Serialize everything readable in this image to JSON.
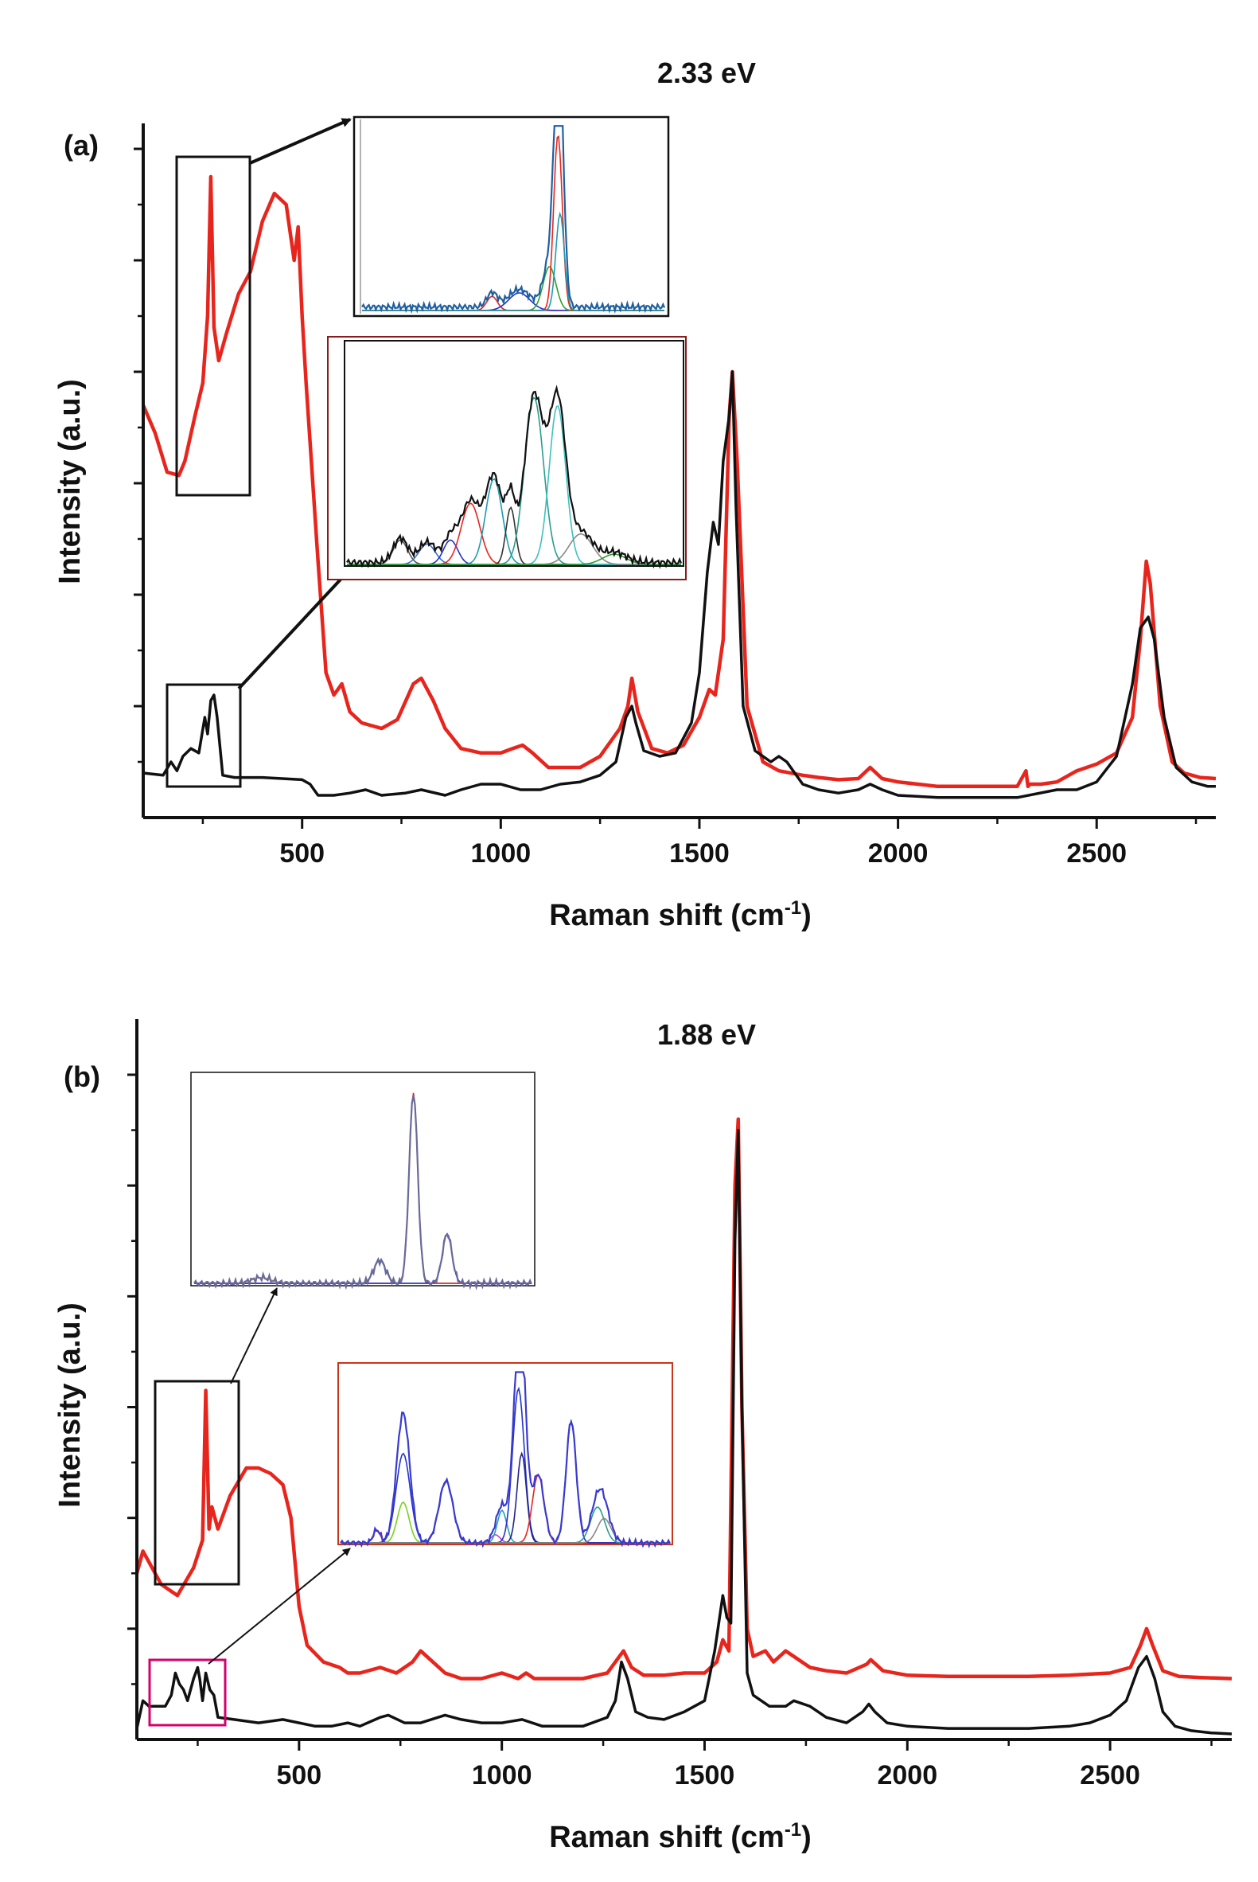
{
  "chart_data": [
    {
      "panel": "(a)",
      "type": "line",
      "title": "2.33 eV",
      "xlabel": "Raman shift (cm",
      "xlabel_sup": "-1",
      "xlabel_end": ")",
      "ylabel": "Intensity (a.u.)",
      "xlim": [
        100,
        2800
      ],
      "ylim": [
        0,
        6
      ],
      "xticks": [
        500,
        1000,
        1500,
        2000,
        2500
      ],
      "yticks": [
        1,
        2,
        3,
        4,
        5,
        6
      ],
      "grid": false,
      "colors": {
        "red": "#e8251d",
        "black": "#111111"
      },
      "series": [
        {
          "color": "#e8251d",
          "x": [
            100,
            130,
            160,
            190,
            205,
            230,
            250,
            262,
            270,
            278,
            290,
            310,
            340,
            370,
            400,
            430,
            460,
            480,
            490,
            500,
            510,
            540,
            560,
            580,
            600,
            620,
            650,
            700,
            740,
            780,
            800,
            830,
            860,
            900,
            950,
            1000,
            1030,
            1055,
            1080,
            1120,
            1200,
            1250,
            1300,
            1320,
            1330,
            1345,
            1380,
            1420,
            1460,
            1500,
            1525,
            1540,
            1560,
            1575,
            1583,
            1595,
            1620,
            1660,
            1700,
            1760,
            1800,
            1850,
            1900,
            1930,
            1960,
            2000,
            2050,
            2100,
            2200,
            2300,
            2322,
            2327,
            2332,
            2360,
            2400,
            2450,
            2500,
            2550,
            2590,
            2610,
            2625,
            2635,
            2660,
            2690,
            2720,
            2760,
            2800
          ],
          "y": [
            3.7,
            3.45,
            3.1,
            3.07,
            3.2,
            3.6,
            3.9,
            4.5,
            5.75,
            4.4,
            4.1,
            4.35,
            4.7,
            4.9,
            5.35,
            5.6,
            5.5,
            5.0,
            5.3,
            4.5,
            3.9,
            2.3,
            1.3,
            1.1,
            1.2,
            0.95,
            0.85,
            0.8,
            0.88,
            1.2,
            1.25,
            1.05,
            0.8,
            0.62,
            0.58,
            0.58,
            0.62,
            0.65,
            0.58,
            0.45,
            0.45,
            0.55,
            0.8,
            1.0,
            1.25,
            0.95,
            0.62,
            0.58,
            0.65,
            0.9,
            1.15,
            1.1,
            1.6,
            3.6,
            4.0,
            3.2,
            1.0,
            0.5,
            0.42,
            0.38,
            0.36,
            0.34,
            0.35,
            0.45,
            0.35,
            0.32,
            0.3,
            0.28,
            0.28,
            0.28,
            0.42,
            0.28,
            0.3,
            0.3,
            0.32,
            0.42,
            0.48,
            0.58,
            0.9,
            1.6,
            2.3,
            2.1,
            1.0,
            0.5,
            0.4,
            0.36,
            0.35
          ]
        },
        {
          "color": "#111111",
          "x": [
            100,
            150,
            170,
            185,
            200,
            220,
            240,
            255,
            262,
            270,
            278,
            286,
            300,
            330,
            400,
            450,
            500,
            520,
            540,
            580,
            620,
            660,
            700,
            760,
            800,
            860,
            900,
            950,
            1000,
            1050,
            1100,
            1150,
            1200,
            1250,
            1290,
            1315,
            1330,
            1340,
            1360,
            1400,
            1440,
            1480,
            1500,
            1520,
            1535,
            1548,
            1560,
            1575,
            1583,
            1592,
            1610,
            1640,
            1680,
            1700,
            1720,
            1760,
            1800,
            1850,
            1900,
            1930,
            1960,
            2000,
            2100,
            2200,
            2300,
            2400,
            2450,
            2500,
            2550,
            2590,
            2610,
            2630,
            2645,
            2670,
            2700,
            2740,
            2780,
            2800
          ],
          "y": [
            0.4,
            0.38,
            0.5,
            0.42,
            0.55,
            0.62,
            0.58,
            0.9,
            0.75,
            1.05,
            1.1,
            0.9,
            0.38,
            0.36,
            0.36,
            0.35,
            0.34,
            0.3,
            0.2,
            0.2,
            0.22,
            0.25,
            0.2,
            0.22,
            0.25,
            0.2,
            0.25,
            0.3,
            0.3,
            0.25,
            0.25,
            0.3,
            0.32,
            0.38,
            0.5,
            0.9,
            1.0,
            0.85,
            0.6,
            0.55,
            0.58,
            0.85,
            1.3,
            2.2,
            2.65,
            2.45,
            3.2,
            3.6,
            4.0,
            2.8,
            1.0,
            0.6,
            0.5,
            0.55,
            0.5,
            0.3,
            0.25,
            0.22,
            0.25,
            0.3,
            0.25,
            0.2,
            0.18,
            0.18,
            0.18,
            0.25,
            0.25,
            0.32,
            0.55,
            1.2,
            1.7,
            1.8,
            1.6,
            0.9,
            0.45,
            0.32,
            0.28,
            0.28
          ]
        }
      ]
    },
    {
      "panel": "(b)",
      "type": "line",
      "title": "1.88 eV",
      "xlabel": "Raman shift (cm",
      "xlabel_sup": "-1",
      "xlabel_end": ")",
      "ylabel": "Intensity (a.u.)",
      "xlim": [
        100,
        2800
      ],
      "ylim": [
        0,
        6
      ],
      "xticks": [
        500,
        1000,
        1500,
        2000,
        2500
      ],
      "yticks": [
        1,
        2,
        3,
        4,
        5,
        6
      ],
      "grid": false,
      "colors": {
        "red": "#e8251d",
        "black": "#111111"
      },
      "series": [
        {
          "color": "#e8251d",
          "x": [
            100,
            115,
            130,
            160,
            200,
            240,
            262,
            270,
            278,
            285,
            300,
            330,
            370,
            400,
            430,
            460,
            480,
            500,
            520,
            560,
            600,
            620,
            650,
            700,
            740,
            780,
            800,
            830,
            860,
            900,
            950,
            1000,
            1040,
            1060,
            1080,
            1120,
            1200,
            1260,
            1290,
            1300,
            1320,
            1350,
            1400,
            1450,
            1500,
            1530,
            1545,
            1560,
            1575,
            1583,
            1592,
            1605,
            1620,
            1650,
            1670,
            1700,
            1720,
            1760,
            1800,
            1850,
            1900,
            1910,
            1940,
            2000,
            2100,
            2200,
            2300,
            2400,
            2500,
            2550,
            2575,
            2590,
            2605,
            2630,
            2670,
            2720,
            2800
          ],
          "y": [
            1.5,
            1.7,
            1.6,
            1.4,
            1.3,
            1.55,
            1.8,
            3.15,
            1.9,
            2.1,
            1.9,
            2.2,
            2.45,
            2.45,
            2.4,
            2.3,
            2.0,
            1.2,
            0.85,
            0.7,
            0.65,
            0.6,
            0.6,
            0.65,
            0.6,
            0.7,
            0.8,
            0.7,
            0.6,
            0.55,
            0.55,
            0.6,
            0.55,
            0.6,
            0.55,
            0.55,
            0.55,
            0.6,
            0.75,
            0.8,
            0.65,
            0.58,
            0.58,
            0.6,
            0.6,
            0.7,
            0.9,
            0.8,
            5.0,
            5.6,
            3.0,
            1.0,
            0.75,
            0.8,
            0.7,
            0.8,
            0.75,
            0.65,
            0.62,
            0.6,
            0.68,
            0.72,
            0.62,
            0.58,
            0.57,
            0.57,
            0.57,
            0.58,
            0.6,
            0.65,
            0.85,
            1.0,
            0.85,
            0.62,
            0.57,
            0.56,
            0.55
          ]
        },
        {
          "color": "#111111",
          "x": [
            100,
            115,
            130,
            170,
            185,
            195,
            205,
            215,
            225,
            240,
            250,
            255,
            262,
            270,
            280,
            290,
            300,
            340,
            400,
            460,
            500,
            540,
            580,
            620,
            650,
            700,
            720,
            760,
            800,
            860,
            900,
            950,
            1000,
            1050,
            1100,
            1150,
            1200,
            1260,
            1280,
            1295,
            1310,
            1330,
            1360,
            1400,
            1450,
            1500,
            1525,
            1545,
            1555,
            1565,
            1575,
            1583,
            1592,
            1605,
            1620,
            1660,
            1700,
            1720,
            1760,
            1800,
            1850,
            1890,
            1905,
            1920,
            1950,
            2000,
            2100,
            2200,
            2300,
            2400,
            2450,
            2500,
            2540,
            2570,
            2590,
            2610,
            2630,
            2660,
            2700,
            2750,
            2800
          ],
          "y": [
            0.1,
            0.35,
            0.3,
            0.3,
            0.4,
            0.6,
            0.5,
            0.45,
            0.35,
            0.55,
            0.65,
            0.55,
            0.35,
            0.6,
            0.45,
            0.4,
            0.2,
            0.18,
            0.15,
            0.18,
            0.15,
            0.12,
            0.12,
            0.15,
            0.12,
            0.2,
            0.22,
            0.15,
            0.15,
            0.22,
            0.18,
            0.15,
            0.15,
            0.18,
            0.12,
            0.12,
            0.12,
            0.2,
            0.35,
            0.7,
            0.55,
            0.25,
            0.2,
            0.18,
            0.25,
            0.35,
            0.8,
            1.3,
            1.1,
            1.05,
            4.5,
            5.5,
            3.0,
            0.6,
            0.4,
            0.3,
            0.3,
            0.35,
            0.3,
            0.2,
            0.15,
            0.25,
            0.32,
            0.25,
            0.15,
            0.12,
            0.1,
            0.1,
            0.1,
            0.12,
            0.15,
            0.22,
            0.35,
            0.65,
            0.75,
            0.55,
            0.25,
            0.12,
            0.08,
            0.06,
            0.05
          ]
        }
      ]
    }
  ]
}
